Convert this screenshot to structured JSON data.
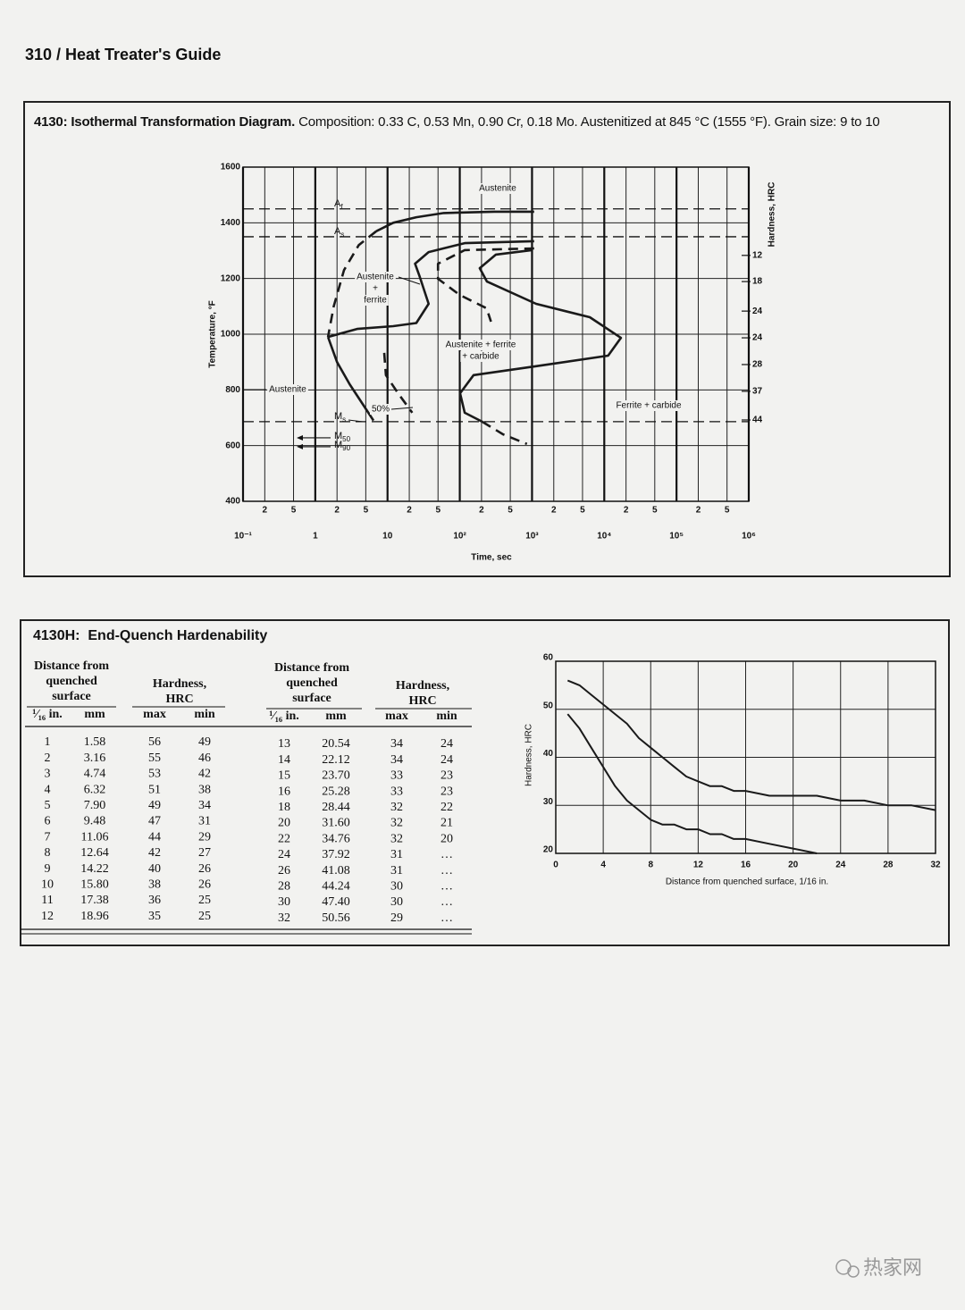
{
  "header": "310 / Heat Treater's Guide",
  "section1": {
    "title": "4130: Isothermal Transformation Diagram.",
    "caption": "Composition: 0.33 C, 0.53 Mn, 0.90 Cr, 0.18 Mo. Austenitized at 845 °C (1555 °F). Grain size: 9 to 10"
  },
  "chart_data": [
    {
      "type": "line",
      "xlabel": "Time, sec",
      "ylabel": "Temperature, °F",
      "y2label": "Hardness, HRC",
      "xscale": "log",
      "grid": true,
      "color": "#1a1a1a",
      "xlim": [
        0.1,
        1000000
      ],
      "xticks": [
        {
          "value": 0.1,
          "label": "10⁻¹"
        },
        1,
        10,
        {
          "value": 100,
          "label": "10²"
        },
        {
          "value": 1000,
          "label": "10³"
        },
        {
          "value": 10000,
          "label": "10⁴"
        },
        {
          "value": 100000,
          "label": "10⁵"
        },
        {
          "value": 1000000,
          "label": "10⁶"
        }
      ],
      "xminor_ticks": [
        {
          "value": 0.2,
          "label": "2"
        },
        {
          "value": 0.5,
          "label": "5"
        },
        {
          "value": 2,
          "label": "2"
        },
        {
          "value": 5,
          "label": "5"
        },
        {
          "value": 20,
          "label": "2"
        },
        {
          "value": 50,
          "label": "5"
        },
        {
          "value": 200,
          "label": "2"
        },
        {
          "value": 500,
          "label": "5"
        },
        {
          "value": 2000,
          "label": "2"
        },
        {
          "value": 5000,
          "label": "5"
        },
        {
          "value": 20000,
          "label": "2"
        },
        {
          "value": 50000,
          "label": "5"
        },
        {
          "value": 200000,
          "label": "2"
        },
        {
          "value": 500000,
          "label": "5"
        }
      ],
      "ylim": [
        400,
        1600
      ],
      "yticks": [
        400,
        600,
        800,
        1000,
        1200,
        1400,
        1600
      ],
      "hardness_ticks": [
        {
          "value": 1283,
          "label": "12"
        },
        {
          "value": 1189,
          "label": "18"
        },
        {
          "value": 1083,
          "label": "24"
        },
        {
          "value": 987,
          "label": "24"
        },
        {
          "value": 891,
          "label": "28"
        },
        {
          "value": 795,
          "label": "37"
        },
        {
          "value": 692,
          "label": "44"
        }
      ],
      "series": [
        {
          "style": "solid",
          "x": [
            1070,
            300,
            60,
            25,
            12,
            7
          ],
          "values": [
            1440,
            1440,
            1435,
            1420,
            1400,
            1370
          ]
        },
        {
          "style": "dashed",
          "x": [
            7,
            4,
            2.5,
            1.8,
            1.5
          ],
          "values": [
            1370,
            1320,
            1230,
            1100,
            990
          ]
        },
        {
          "style": "solid",
          "x": [
            1.5,
            2,
            3,
            4.5,
            6.4
          ],
          "values": [
            990,
            900,
            820,
            750,
            690
          ]
        },
        {
          "style": "solid",
          "x": [
            1.5,
            3.8,
            12,
            25,
            37,
            28,
            24,
            37,
            117,
            1070
          ],
          "values": [
            990,
            1019,
            1029,
            1040,
            1109,
            1205,
            1253,
            1295,
            1327,
            1334
          ]
        },
        {
          "style": "dashed",
          "x": [
            1070,
            117,
            50,
            50,
            100,
            235,
            270
          ],
          "values": [
            1308,
            1302,
            1253,
            1199,
            1141,
            1093,
            1045
          ]
        },
        {
          "style": "dashed",
          "x": [
            9,
            9.5,
            14,
            22
          ],
          "values": [
            933,
            853,
            788,
            718
          ]
        },
        {
          "style": "solid",
          "x": [
            990,
            316,
            189,
            238,
            1140,
            6300,
            17000,
            11300,
            1140,
            155,
            101,
            117,
            204
          ],
          "values": [
            1302,
            1286,
            1237,
            1189,
            1109,
            1061,
            987,
            923,
            885,
            853,
            788,
            718,
            686
          ]
        },
        {
          "style": "dashed",
          "x": [
            204,
            400,
            850
          ],
          "values": [
            686,
            640,
            606
          ]
        }
      ],
      "reference_lines": [
        {
          "value": 1450,
          "label": {
            "text": "A",
            "sub": "f"
          }
        },
        {
          "value": 1350,
          "label": {
            "text": "A",
            "sub": "s"
          }
        },
        {
          "value": 686,
          "label": {
            "text": "M",
            "sub": "s"
          }
        }
      ],
      "arrows": [
        {
          "value": 628,
          "label": {
            "text": "M",
            "sub": "50"
          }
        },
        {
          "value": 596,
          "label": {
            "text": "M",
            "sub": "90"
          }
        }
      ],
      "annotations": [
        [
          "Austenite"
        ],
        [
          "Austenite",
          "+",
          "ferrite"
        ],
        [
          "Austenite + ferrite",
          "+ carbide"
        ],
        [
          "50%"
        ],
        [
          "Ferrite + carbide"
        ],
        [
          "Austenite"
        ]
      ]
    },
    {
      "type": "line",
      "xlabel": "Distance from quenched surface, 1/16 in.",
      "ylabel": "Hardness, HRC",
      "grid": true,
      "color": "#1a1a1a",
      "xlim": [
        0,
        32
      ],
      "xticks": [
        0,
        4,
        8,
        12,
        16,
        20,
        24,
        28,
        32
      ],
      "ylim": [
        20,
        60
      ],
      "yticks": [
        20,
        30,
        40,
        50,
        60
      ],
      "series": [
        {
          "x": [
            1,
            2,
            3,
            4,
            5,
            6,
            7,
            8,
            9,
            10,
            11,
            12,
            13,
            14,
            15,
            16,
            18,
            20,
            22,
            24,
            26,
            28,
            30,
            32
          ],
          "values": [
            56,
            55,
            53,
            51,
            49,
            47,
            44,
            42,
            40,
            38,
            36,
            35,
            34,
            34,
            33,
            33,
            32,
            32,
            32,
            31,
            31,
            30,
            30,
            29
          ]
        },
        {
          "x": [
            1,
            2,
            3,
            4,
            5,
            6,
            7,
            8,
            9,
            10,
            11,
            12,
            13,
            14,
            15,
            16,
            18,
            20,
            22
          ],
          "values": [
            49,
            46,
            42,
            38,
            34,
            31,
            29,
            27,
            26,
            26,
            25,
            25,
            24,
            24,
            23,
            23,
            22,
            21,
            20
          ]
        }
      ]
    }
  ],
  "section2": {
    "title": "4130H:  End-Quench Hardenability",
    "table": {
      "groups": [
        [
          "Distance from",
          "quenched",
          "surface"
        ],
        [
          "Hardness,",
          "HRC"
        ],
        [
          "Distance from",
          "quenched",
          "surface"
        ],
        [
          "Hardness,",
          "HRC"
        ]
      ],
      "columns": [
        "¹⁄₁₆ in.",
        "mm",
        "max",
        "min",
        "¹⁄₁₆ in.",
        "mm",
        "max",
        "min"
      ],
      "rows": [
        [
          "1",
          "1.58",
          "56",
          "49",
          "13",
          "20.54",
          "34",
          "24"
        ],
        [
          "2",
          "3.16",
          "55",
          "46",
          "14",
          "22.12",
          "34",
          "24"
        ],
        [
          "3",
          "4.74",
          "53",
          "42",
          "15",
          "23.70",
          "33",
          "23"
        ],
        [
          "4",
          "6.32",
          "51",
          "38",
          "16",
          "25.28",
          "33",
          "23"
        ],
        [
          "5",
          "7.90",
          "49",
          "34",
          "18",
          "28.44",
          "32",
          "22"
        ],
        [
          "6",
          "9.48",
          "47",
          "31",
          "20",
          "31.60",
          "32",
          "21"
        ],
        [
          "7",
          "11.06",
          "44",
          "29",
          "22",
          "34.76",
          "32",
          "20"
        ],
        [
          "8",
          "12.64",
          "42",
          "27",
          "24",
          "37.92",
          "31",
          "…"
        ],
        [
          "9",
          "14.22",
          "40",
          "26",
          "26",
          "41.08",
          "31",
          "…"
        ],
        [
          "10",
          "15.80",
          "38",
          "26",
          "28",
          "44.24",
          "30",
          "…"
        ],
        [
          "11",
          "17.38",
          "36",
          "25",
          "30",
          "47.40",
          "30",
          "…"
        ],
        [
          "12",
          "18.96",
          "35",
          "25",
          "32",
          "50.56",
          "29",
          "…"
        ]
      ]
    }
  },
  "watermark": "热家网"
}
